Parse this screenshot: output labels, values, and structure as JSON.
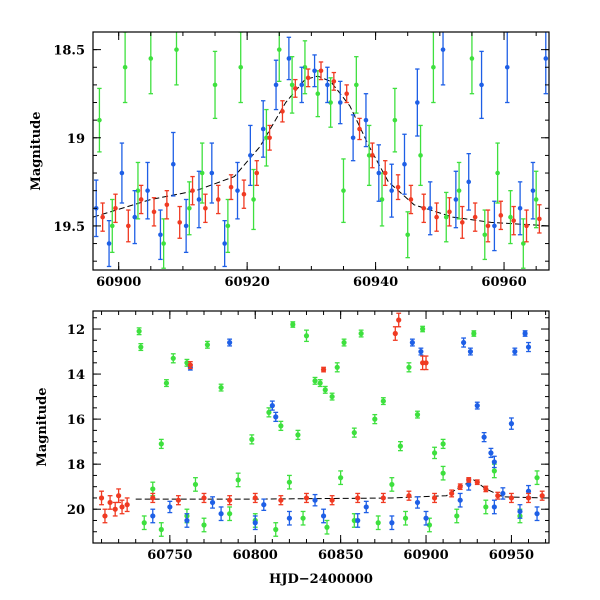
{
  "chart_data": [
    {
      "type": "scatter",
      "panel": "top",
      "title": "",
      "xlabel": "",
      "ylabel": "Magnitude",
      "xlim": [
        60896,
        60967
      ],
      "ylim": [
        19.75,
        18.4
      ],
      "y_inverted": true,
      "x_ticks": [
        60900,
        60920,
        60940,
        60960
      ],
      "x_tick_labels": [
        "60900",
        "60920",
        "60940",
        "60960"
      ],
      "x_minor_step": 5,
      "y_ticks": [
        18.5,
        19,
        19.5
      ],
      "y_tick_labels": [
        "18.5",
        "19",
        "19.5"
      ],
      "y_minor_step": 0.1,
      "legend": "none",
      "grid": false,
      "trend_line": {
        "x": [
          60896,
          60905,
          60912,
          60918,
          60922,
          60926,
          60929,
          60931,
          60933,
          60936,
          60939,
          60942,
          60946,
          60952,
          60958,
          60967
        ],
        "y": [
          19.45,
          19.35,
          19.3,
          19.22,
          19.05,
          18.8,
          18.67,
          18.65,
          18.68,
          18.82,
          19.05,
          19.25,
          19.38,
          19.45,
          19.48,
          19.5
        ]
      },
      "series": [
        {
          "name": "green",
          "color": "#3ee03e",
          "x": [
            60897,
            60899,
            60901,
            60903,
            60905,
            60907,
            60909,
            60911,
            60913,
            60915,
            60917,
            60919,
            60921,
            60923,
            60925,
            60927,
            60929,
            60931,
            60933,
            60935,
            60937,
            60939,
            60941,
            60943,
            60945,
            60947,
            60949,
            60951,
            60953,
            60955,
            60957,
            60959,
            60961,
            60963,
            60965
          ],
          "y": [
            18.9,
            19.5,
            18.6,
            19.3,
            18.55,
            19.6,
            18.5,
            19.4,
            19.2,
            18.7,
            19.5,
            18.6,
            19.35,
            19.0,
            18.5,
            18.7,
            18.6,
            18.75,
            18.8,
            19.3,
            18.7,
            19.1,
            19.35,
            18.9,
            19.55,
            19.1,
            18.6,
            19.45,
            19.3,
            18.55,
            19.55,
            19.2,
            19.45,
            19.6,
            19.35
          ],
          "err": [
            0.18,
            0.15,
            0.2,
            0.16,
            0.2,
            0.14,
            0.2,
            0.15,
            0.17,
            0.19,
            0.15,
            0.2,
            0.17,
            0.16,
            0.18,
            0.16,
            0.15,
            0.13,
            0.14,
            0.18,
            0.16,
            0.17,
            0.15,
            0.18,
            0.13,
            0.17,
            0.2,
            0.14,
            0.16,
            0.2,
            0.14,
            0.17,
            0.15,
            0.14,
            0.16
          ]
        },
        {
          "name": "blue",
          "color": "#1e5fe6",
          "x": [
            60896.5,
            60898.5,
            60900.5,
            60902.5,
            60904.5,
            60906.5,
            60908.5,
            60910.5,
            60912.5,
            60914.5,
            60916.5,
            60918.5,
            60920.5,
            60922.5,
            60924.5,
            60926.5,
            60928.5,
            60930.5,
            60932.5,
            60934.5,
            60936.5,
            60938.5,
            60940.5,
            60942.5,
            60944.5,
            60946.5,
            60948.5,
            60950.5,
            60952.5,
            60954.5,
            60956.5,
            60958.5,
            60960.5,
            60962.5,
            60964.5,
            60966.5
          ],
          "y": [
            19.4,
            19.6,
            19.2,
            19.45,
            19.3,
            19.55,
            19.15,
            19.5,
            19.35,
            19.2,
            19.6,
            19.3,
            19.1,
            18.95,
            18.7,
            18.55,
            18.7,
            18.62,
            18.7,
            18.8,
            19.0,
            18.9,
            19.2,
            19.3,
            19.15,
            18.8,
            19.4,
            18.5,
            19.35,
            19.25,
            18.7,
            19.5,
            18.6,
            19.4,
            19.3,
            18.55
          ],
          "err": [
            0.16,
            0.13,
            0.17,
            0.15,
            0.16,
            0.14,
            0.18,
            0.15,
            0.16,
            0.17,
            0.13,
            0.16,
            0.17,
            0.16,
            0.14,
            0.12,
            0.1,
            0.09,
            0.1,
            0.12,
            0.13,
            0.15,
            0.16,
            0.15,
            0.17,
            0.19,
            0.15,
            0.2,
            0.16,
            0.16,
            0.19,
            0.14,
            0.2,
            0.15,
            0.16,
            0.2
          ]
        },
        {
          "name": "red",
          "color": "#f03a22",
          "x": [
            60897.5,
            60899.5,
            60901.5,
            60903.5,
            60905.5,
            60907.5,
            60909.5,
            60911.5,
            60913.5,
            60915.5,
            60917.5,
            60919.5,
            60921.5,
            60923.5,
            60925.5,
            60927.5,
            60929.5,
            60931.5,
            60933.5,
            60935.5,
            60937.5,
            60939.5,
            60941.5,
            60943.5,
            60945.5,
            60947.5,
            60949.5,
            60951.5,
            60953.5,
            60955.5,
            60957.5,
            60959.5,
            60961.5,
            60963.5,
            60965.5
          ],
          "y": [
            19.45,
            19.4,
            19.5,
            19.35,
            19.42,
            19.38,
            19.48,
            19.3,
            19.4,
            19.35,
            19.28,
            19.32,
            19.2,
            19.0,
            18.85,
            18.72,
            18.66,
            18.62,
            18.68,
            18.75,
            18.95,
            19.1,
            19.2,
            19.28,
            19.35,
            19.4,
            19.45,
            19.42,
            19.48,
            19.45,
            19.5,
            19.44,
            19.47,
            19.5,
            19.46
          ],
          "err": [
            0.08,
            0.08,
            0.09,
            0.08,
            0.08,
            0.08,
            0.09,
            0.08,
            0.08,
            0.08,
            0.07,
            0.08,
            0.07,
            0.07,
            0.06,
            0.05,
            0.05,
            0.05,
            0.05,
            0.05,
            0.06,
            0.07,
            0.07,
            0.07,
            0.08,
            0.08,
            0.08,
            0.08,
            0.09,
            0.08,
            0.09,
            0.08,
            0.08,
            0.09,
            0.08
          ]
        }
      ]
    },
    {
      "type": "scatter",
      "panel": "bottom",
      "title": "",
      "xlabel": "HJD−2400000",
      "ylabel": "Magnitude",
      "xlim": [
        60705,
        60972
      ],
      "ylim": [
        21.5,
        11.2
      ],
      "y_inverted": true,
      "x_ticks": [
        60750,
        60800,
        60850,
        60900,
        60950
      ],
      "x_tick_labels": [
        "60750",
        "60800",
        "60850",
        "60900",
        "60950"
      ],
      "x_minor_step": 10,
      "y_ticks": [
        12,
        14,
        16,
        18,
        20
      ],
      "y_tick_labels": [
        "12",
        "14",
        "16",
        "18",
        "20"
      ],
      "y_minor_step": 0.5,
      "legend": "none",
      "grid": false,
      "trend_line": {
        "x": [
          60730,
          60800,
          60880,
          60912,
          60920,
          60928,
          60935,
          60945,
          60970
        ],
        "y": [
          19.55,
          19.55,
          19.5,
          19.4,
          19.0,
          18.7,
          19.1,
          19.45,
          19.5
        ]
      },
      "series": [
        {
          "name": "green",
          "color": "#3ee03e",
          "x": [
            60732,
            60733,
            60745,
            60748,
            60752,
            60760,
            60772,
            60780,
            60798,
            60808,
            60815,
            60822,
            60825,
            60830,
            60835,
            60838,
            60841,
            60845,
            60848,
            60852,
            60858,
            60862,
            60870,
            60875,
            60885,
            60890,
            60895,
            60898,
            60905,
            60910,
            60928,
            60735,
            60745,
            60760,
            60770,
            60785,
            60800,
            60812,
            60828,
            60842,
            60858,
            60872,
            60888,
            60902,
            60918,
            60935,
            60955,
            60740,
            60765,
            60790,
            60820,
            60850,
            60880,
            60910,
            60940,
            60965
          ],
          "y": [
            12.1,
            12.8,
            17.1,
            14.4,
            13.3,
            13.5,
            12.7,
            14.6,
            16.9,
            15.7,
            16.3,
            11.8,
            16.7,
            12.3,
            14.3,
            14.4,
            14.7,
            15.0,
            13.7,
            12.6,
            16.6,
            12.2,
            16.0,
            15.2,
            17.2,
            13.7,
            15.8,
            12.0,
            17.5,
            17.1,
            12.2,
            20.6,
            20.9,
            20.3,
            20.7,
            20.2,
            20.5,
            20.9,
            20.4,
            20.8,
            20.5,
            20.6,
            20.4,
            20.7,
            20.3,
            19.9,
            20.3,
            19.1,
            18.9,
            18.7,
            18.8,
            18.6,
            18.9,
            18.4,
            18.3,
            18.6
          ],
          "err": [
            0.15,
            0.15,
            0.2,
            0.15,
            0.2,
            0.15,
            0.15,
            0.15,
            0.2,
            0.2,
            0.2,
            0.12,
            0.2,
            0.25,
            0.15,
            0.15,
            0.15,
            0.15,
            0.2,
            0.15,
            0.2,
            0.15,
            0.2,
            0.15,
            0.2,
            0.2,
            0.15,
            0.12,
            0.25,
            0.2,
            0.12,
            0.3,
            0.3,
            0.3,
            0.3,
            0.3,
            0.3,
            0.3,
            0.3,
            0.3,
            0.3,
            0.3,
            0.3,
            0.3,
            0.3,
            0.3,
            0.3,
            0.3,
            0.3,
            0.3,
            0.3,
            0.3,
            0.3,
            0.3,
            0.3,
            0.3
          ]
        },
        {
          "name": "blue",
          "color": "#1e5fe6",
          "x": [
            60762,
            60785,
            60810,
            60812,
            60892,
            60897,
            60922,
            60926,
            60930,
            60934,
            60938,
            60940,
            60950,
            60952,
            60958,
            60960,
            60740,
            60760,
            60780,
            60800,
            60820,
            60840,
            60860,
            60880,
            60900,
            60920,
            60940,
            60955,
            60965,
            60750,
            60775,
            60805,
            60835,
            60865,
            60895,
            60925,
            60945,
            60960
          ],
          "y": [
            13.7,
            12.6,
            15.4,
            15.9,
            12.6,
            13.0,
            12.6,
            13.0,
            15.4,
            16.8,
            17.5,
            17.9,
            16.2,
            13.0,
            12.2,
            12.8,
            20.3,
            20.5,
            20.2,
            20.6,
            20.4,
            20.3,
            20.5,
            20.6,
            20.4,
            19.6,
            19.9,
            20.1,
            20.2,
            19.9,
            19.7,
            19.8,
            19.6,
            19.9,
            19.7,
            18.9,
            19.3,
            19.2
          ],
          "err": [
            0.12,
            0.15,
            0.2,
            0.2,
            0.15,
            0.15,
            0.2,
            0.15,
            0.15,
            0.2,
            0.2,
            0.25,
            0.25,
            0.15,
            0.12,
            0.2,
            0.3,
            0.3,
            0.3,
            0.3,
            0.3,
            0.3,
            0.3,
            0.3,
            0.3,
            0.3,
            0.3,
            0.3,
            0.3,
            0.25,
            0.25,
            0.25,
            0.25,
            0.25,
            0.25,
            0.25,
            0.25,
            0.25
          ]
        },
        {
          "name": "red",
          "color": "#f03a22",
          "x": [
            60710,
            60712,
            60715,
            60718,
            60720,
            60722,
            60725,
            60762,
            60840,
            60882,
            60884,
            60898,
            60900,
            60740,
            60755,
            60770,
            60785,
            60800,
            60815,
            60830,
            60845,
            60860,
            60875,
            60890,
            60905,
            60915,
            60920,
            60925,
            60930,
            60935,
            60942,
            60950,
            60960,
            60968
          ],
          "y": [
            19.5,
            20.3,
            19.7,
            20.0,
            19.4,
            19.9,
            19.8,
            13.6,
            13.8,
            12.2,
            11.6,
            13.5,
            13.5,
            19.5,
            19.6,
            19.5,
            19.6,
            19.5,
            19.6,
            19.5,
            19.6,
            19.5,
            19.5,
            19.4,
            19.5,
            19.3,
            19.0,
            18.7,
            18.8,
            19.1,
            19.4,
            19.5,
            19.5,
            19.4
          ],
          "err": [
            0.3,
            0.3,
            0.3,
            0.3,
            0.3,
            0.3,
            0.3,
            0.15,
            0.1,
            0.3,
            0.3,
            0.3,
            0.3,
            0.2,
            0.2,
            0.2,
            0.2,
            0.2,
            0.2,
            0.2,
            0.2,
            0.2,
            0.2,
            0.2,
            0.2,
            0.15,
            0.12,
            0.1,
            0.1,
            0.12,
            0.15,
            0.2,
            0.2,
            0.2
          ]
        }
      ]
    }
  ]
}
